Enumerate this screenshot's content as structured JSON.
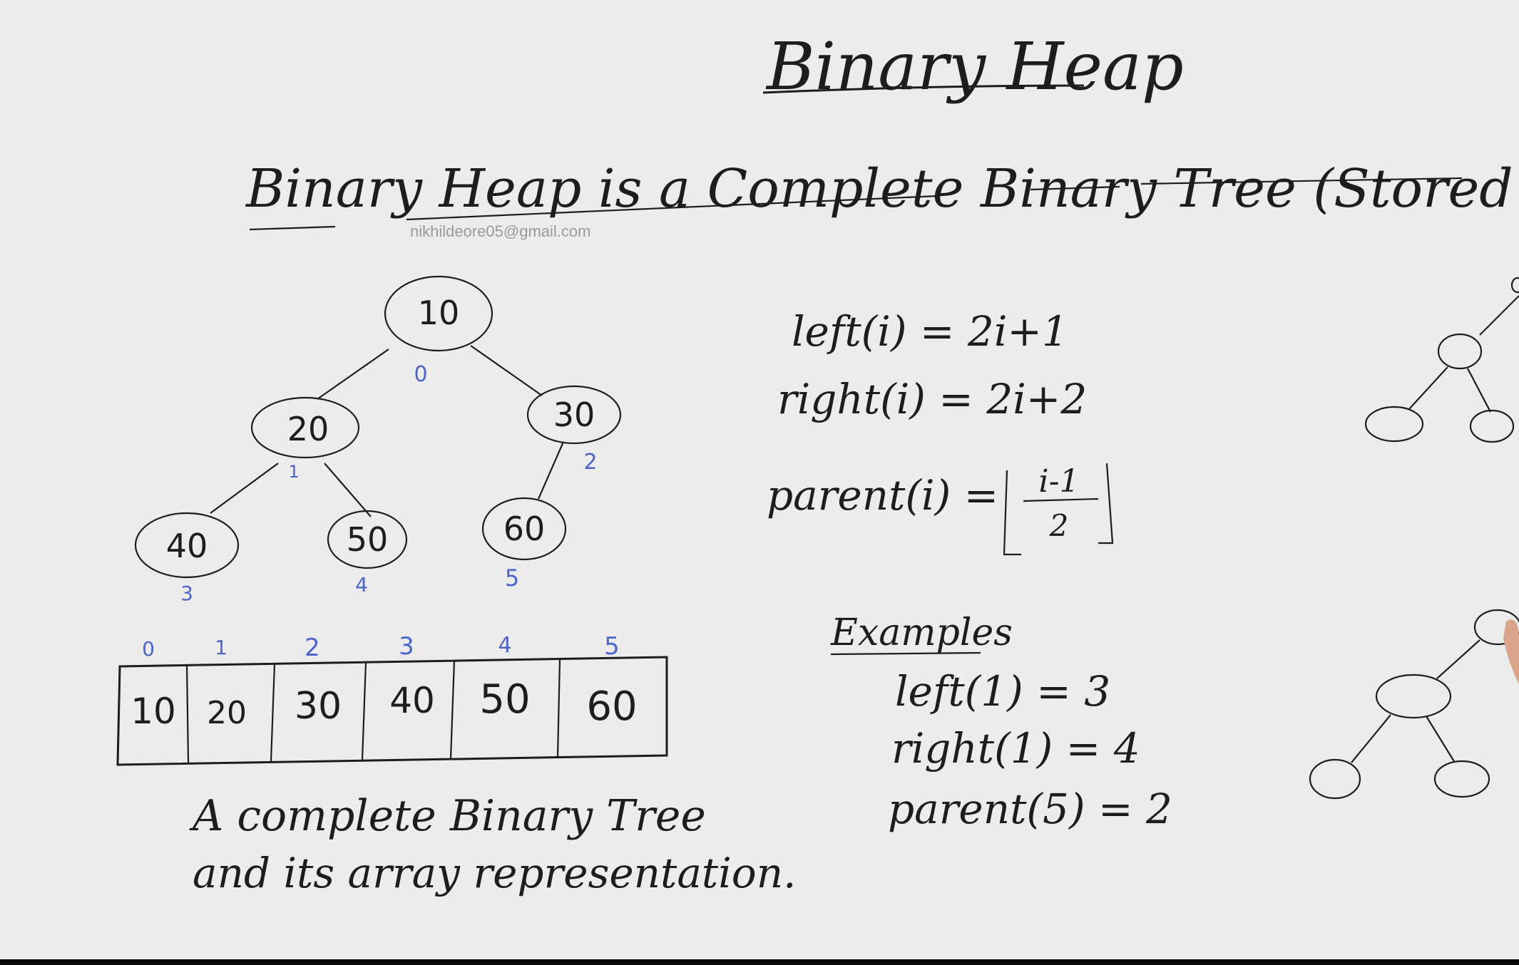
{
  "title": "Binary Heap",
  "definition": "Binary Heap is a Complete Binary Tree (Stored as an array)",
  "watermark": "nikhildeore05@gmail.com",
  "tree": {
    "nodes": [
      {
        "value": "10",
        "index": "0"
      },
      {
        "value": "20",
        "index": "1"
      },
      {
        "value": "30",
        "index": "2"
      },
      {
        "value": "40",
        "index": "3"
      },
      {
        "value": "50",
        "index": "4"
      },
      {
        "value": "60",
        "index": "5"
      }
    ]
  },
  "array": {
    "indices": [
      "0",
      "1",
      "2",
      "3",
      "4",
      "5"
    ],
    "values": [
      "10",
      "20",
      "30",
      "40",
      "50",
      "60"
    ]
  },
  "caption": {
    "line1": "A complete Binary Tree",
    "line2": "and its array representation."
  },
  "formulas": {
    "left": "left(i) = 2i+1",
    "right": "right(i) = 2i+2",
    "parent_lhs": "parent(i) =",
    "parent_num": "i-1",
    "parent_den": "2"
  },
  "examples": {
    "heading": "Examples",
    "items": [
      "left(1) = 3",
      "right(1) = 4",
      "parent(5) = 2"
    ]
  },
  "colors": {
    "ink": "#1d1d1d",
    "index_blue": "#4d64c8",
    "board": "#ececec"
  }
}
